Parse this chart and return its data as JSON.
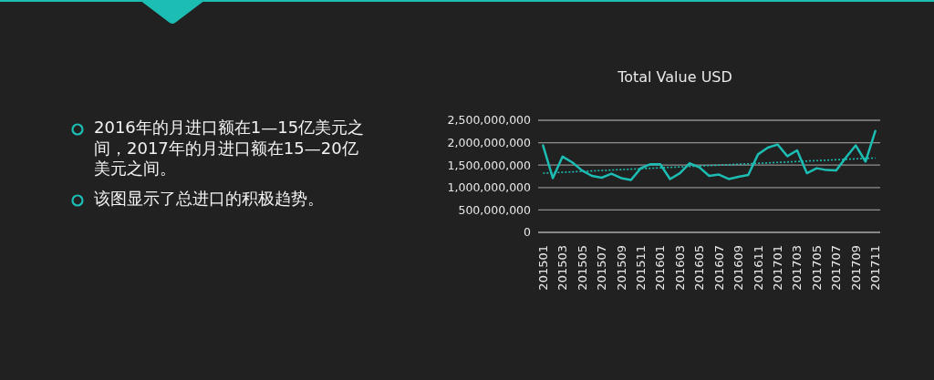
{
  "chart_data": {
    "type": "line",
    "title": "Total Value USD",
    "categories": [
      "201501",
      null,
      "201503",
      null,
      "201505",
      null,
      "201507",
      null,
      "201509",
      null,
      "201511",
      null,
      "201601",
      null,
      "201603",
      null,
      "201605",
      null,
      "201607",
      null,
      "201609",
      null,
      "201611",
      null,
      "201701",
      null,
      "201703",
      null,
      "201705",
      null,
      "201707",
      null,
      "201709",
      null,
      "201711"
    ],
    "series": [
      {
        "color": "#1cbdb3",
        "values": [
          1940000000,
          1210000000,
          1690000000,
          1560000000,
          1380000000,
          1260000000,
          1220000000,
          1310000000,
          1210000000,
          1170000000,
          1430000000,
          1520000000,
          1520000000,
          1190000000,
          1320000000,
          1540000000,
          1450000000,
          1260000000,
          1290000000,
          1190000000,
          1240000000,
          1280000000,
          1740000000,
          1890000000,
          1960000000,
          1700000000,
          1830000000,
          1320000000,
          1430000000,
          1390000000,
          1380000000,
          1670000000,
          1940000000,
          1580000000,
          2260000000
        ]
      },
      {
        "type": "line",
        "color": "#1cbdb3",
        "x": [
          "201501",
          "201711"
        ],
        "values": [
          1320000000,
          1660000000
        ],
        "line_style": "dotted"
      }
    ],
    "ylim": [
      0,
      2500000000
    ],
    "yticks": [
      {
        "value": 0,
        "label": "0"
      },
      {
        "value": 500000000,
        "label": "500,000,000"
      },
      {
        "value": 1000000000,
        "label": "1,000,000,000"
      },
      {
        "value": 1500000000,
        "label": "1,500,000,000"
      },
      {
        "value": 2000000000,
        "label": "2,000,000,000"
      },
      {
        "value": 2500000000,
        "label": "2,500,000,000"
      }
    ],
    "grid": "y",
    "marker": "none",
    "annotations": [
      "2016年的月进口额在1—15亿美元之间，2017年的月进口额在15—20亿美元之间。",
      "该图显示了总进口的积极趋势。"
    ]
  }
}
